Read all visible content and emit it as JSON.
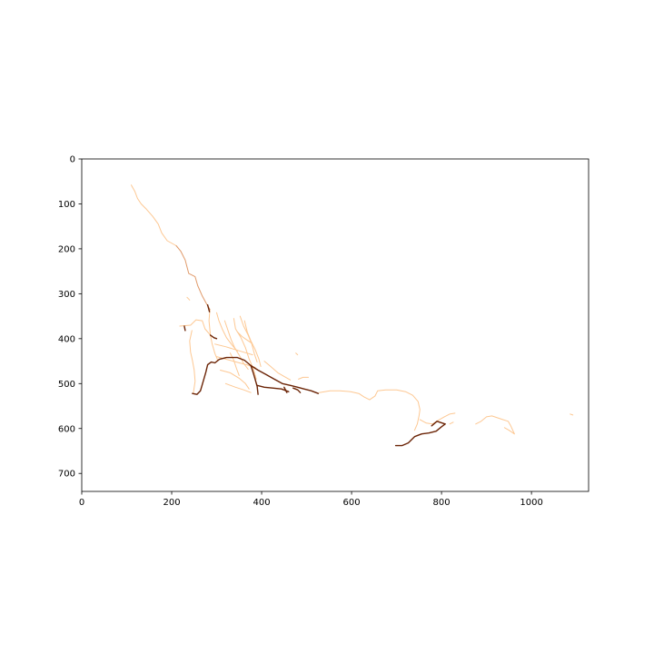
{
  "chart_data": {
    "type": "line",
    "title": "",
    "xlabel": "",
    "ylabel": "",
    "xlim": [
      0,
      1127
    ],
    "ylim": [
      740,
      0
    ],
    "y_inverted": true,
    "grid": false,
    "legend": "none",
    "x_ticks": [
      0,
      200,
      400,
      600,
      800,
      1000
    ],
    "x_tick_labels": [
      "0",
      "200",
      "400",
      "600",
      "800",
      "1000"
    ],
    "y_ticks": [
      0,
      100,
      200,
      300,
      400,
      500,
      600,
      700
    ],
    "y_tick_labels": [
      "0",
      "100",
      "200",
      "300",
      "400",
      "500",
      "600",
      "700"
    ],
    "colors": {
      "light": "#fdc893",
      "medium": "#e09a6a",
      "dark": "#6b2406"
    },
    "series": [
      {
        "level": "light",
        "points": [
          [
            110,
            58
          ],
          [
            118,
            72
          ],
          [
            124,
            88
          ],
          [
            132,
            100
          ],
          [
            144,
            112
          ],
          [
            158,
            128
          ],
          [
            170,
            145
          ],
          [
            178,
            165
          ],
          [
            190,
            182
          ],
          [
            210,
            193
          ]
        ]
      },
      {
        "level": "medium",
        "points": [
          [
            210,
            193
          ],
          [
            220,
            205
          ],
          [
            230,
            225
          ],
          [
            238,
            255
          ],
          [
            252,
            262
          ],
          [
            258,
            282
          ],
          [
            268,
            305
          ],
          [
            276,
            320
          ],
          [
            285,
            335
          ]
        ]
      },
      {
        "level": "light",
        "points": [
          [
            285,
            335
          ],
          [
            283,
            360
          ],
          [
            286,
            392
          ],
          [
            290,
            412
          ],
          [
            296,
            433
          ],
          [
            302,
            447
          ]
        ]
      },
      {
        "level": "light",
        "points": [
          [
            218,
            372
          ],
          [
            242,
            370
          ],
          [
            254,
            358
          ],
          [
            268,
            360
          ],
          [
            274,
            378
          ],
          [
            286,
            392
          ]
        ]
      },
      {
        "level": "light",
        "points": [
          [
            245,
            382
          ],
          [
            240,
            405
          ],
          [
            242,
            430
          ],
          [
            246,
            448
          ],
          [
            250,
            470
          ],
          [
            252,
            495
          ],
          [
            248,
            522
          ]
        ]
      },
      {
        "level": "light",
        "points": [
          [
            300,
            342
          ],
          [
            305,
            360
          ],
          [
            313,
            380
          ],
          [
            322,
            398
          ],
          [
            334,
            414
          ],
          [
            346,
            428
          ]
        ]
      },
      {
        "level": "light",
        "points": [
          [
            318,
            360
          ],
          [
            324,
            378
          ],
          [
            332,
            402
          ],
          [
            340,
            420
          ],
          [
            352,
            440
          ],
          [
            360,
            455
          ],
          [
            370,
            468
          ]
        ]
      },
      {
        "level": "light",
        "points": [
          [
            338,
            355
          ],
          [
            342,
            378
          ],
          [
            354,
            398
          ],
          [
            364,
            420
          ],
          [
            372,
            445
          ],
          [
            382,
            468
          ],
          [
            388,
            490
          ]
        ]
      },
      {
        "level": "light",
        "points": [
          [
            352,
            350
          ],
          [
            360,
            372
          ],
          [
            370,
            392
          ],
          [
            378,
            412
          ],
          [
            384,
            434
          ],
          [
            390,
            452
          ]
        ]
      },
      {
        "level": "light",
        "points": [
          [
            362,
            360
          ],
          [
            368,
            385
          ],
          [
            376,
            405
          ],
          [
            386,
            425
          ],
          [
            394,
            446
          ],
          [
            398,
            462
          ]
        ]
      },
      {
        "level": "light",
        "points": [
          [
            296,
            412
          ],
          [
            320,
            418
          ],
          [
            340,
            424
          ],
          [
            360,
            430
          ],
          [
            380,
            436
          ]
        ]
      },
      {
        "level": "light",
        "points": [
          [
            300,
            440
          ],
          [
            322,
            446
          ],
          [
            344,
            452
          ],
          [
            366,
            458
          ],
          [
            386,
            464
          ]
        ]
      },
      {
        "level": "light",
        "points": [
          [
            308,
            470
          ],
          [
            330,
            476
          ],
          [
            350,
            488
          ],
          [
            364,
            500
          ],
          [
            372,
            512
          ]
        ]
      },
      {
        "level": "light",
        "points": [
          [
            320,
            500
          ],
          [
            342,
            508
          ],
          [
            360,
            514
          ],
          [
            376,
            520
          ]
        ]
      },
      {
        "level": "light",
        "points": [
          [
            346,
            385
          ],
          [
            356,
            395
          ],
          [
            366,
            402
          ],
          [
            378,
            410
          ]
        ]
      },
      {
        "level": "light",
        "points": [
          [
            330,
            432
          ],
          [
            338,
            448
          ],
          [
            344,
            466
          ],
          [
            350,
            482
          ]
        ]
      },
      {
        "level": "light",
        "points": [
          [
            406,
            450
          ],
          [
            420,
            462
          ],
          [
            436,
            476
          ],
          [
            450,
            484
          ],
          [
            464,
            492
          ]
        ]
      },
      {
        "level": "light",
        "points": [
          [
            482,
            490
          ],
          [
            492,
            486
          ],
          [
            504,
            486
          ]
        ]
      },
      {
        "level": "light",
        "points": [
          [
            528,
            520
          ],
          [
            552,
            516
          ],
          [
            574,
            516
          ],
          [
            598,
            518
          ],
          [
            616,
            522
          ],
          [
            628,
            530
          ],
          [
            640,
            536
          ],
          [
            652,
            528
          ],
          [
            658,
            516
          ],
          [
            676,
            514
          ],
          [
            700,
            514
          ],
          [
            720,
            518
          ],
          [
            736,
            526
          ],
          [
            748,
            540
          ],
          [
            752,
            558
          ],
          [
            750,
            572
          ],
          [
            746,
            590
          ],
          [
            740,
            604
          ]
        ]
      },
      {
        "level": "light",
        "points": [
          [
            752,
            580
          ],
          [
            766,
            588
          ],
          [
            780,
            590
          ],
          [
            792,
            582
          ],
          [
            806,
            574
          ],
          [
            818,
            568
          ],
          [
            830,
            566
          ]
        ]
      },
      {
        "level": "light",
        "points": [
          [
            818,
            590
          ],
          [
            826,
            586
          ]
        ]
      },
      {
        "level": "light",
        "points": [
          [
            876,
            590
          ],
          [
            888,
            584
          ],
          [
            900,
            574
          ],
          [
            912,
            572
          ],
          [
            924,
            576
          ],
          [
            936,
            580
          ],
          [
            948,
            584
          ],
          [
            954,
            594
          ],
          [
            962,
            612
          ]
        ]
      },
      {
        "level": "light",
        "points": [
          [
            940,
            598
          ],
          [
            950,
            604
          ],
          [
            962,
            612
          ]
        ]
      },
      {
        "level": "light",
        "points": [
          [
            1086,
            568
          ],
          [
            1092,
            570
          ]
        ]
      },
      {
        "level": "light",
        "points": [
          [
            476,
            432
          ],
          [
            480,
            436
          ]
        ]
      },
      {
        "level": "light",
        "points": [
          [
            234,
            308
          ],
          [
            240,
            314
          ]
        ]
      },
      {
        "level": "dark",
        "points": [
          [
            280,
            325
          ],
          [
            284,
            340
          ]
        ]
      },
      {
        "level": "dark",
        "points": [
          [
            286,
            392
          ],
          [
            294,
            398
          ],
          [
            300,
            400
          ]
        ]
      },
      {
        "level": "dark",
        "points": [
          [
            246,
            522
          ],
          [
            256,
            524
          ],
          [
            264,
            516
          ],
          [
            268,
            502
          ],
          [
            272,
            488
          ],
          [
            276,
            474
          ],
          [
            280,
            458
          ],
          [
            288,
            452
          ],
          [
            296,
            454
          ],
          [
            306,
            446
          ],
          [
            322,
            442
          ],
          [
            346,
            442
          ],
          [
            362,
            448
          ],
          [
            376,
            460
          ]
        ]
      },
      {
        "level": "dark",
        "points": [
          [
            376,
            460
          ],
          [
            382,
            478
          ],
          [
            386,
            492
          ],
          [
            390,
            506
          ],
          [
            392,
            524
          ]
        ]
      },
      {
        "level": "dark",
        "points": [
          [
            376,
            460
          ],
          [
            392,
            470
          ],
          [
            410,
            480
          ],
          [
            428,
            490
          ],
          [
            446,
            500
          ],
          [
            464,
            504
          ],
          [
            480,
            508
          ],
          [
            494,
            512
          ],
          [
            510,
            516
          ],
          [
            526,
            522
          ]
        ]
      },
      {
        "level": "dark",
        "points": [
          [
            390,
            504
          ],
          [
            406,
            508
          ],
          [
            424,
            510
          ],
          [
            444,
            512
          ],
          [
            460,
            518
          ]
        ]
      },
      {
        "level": "dark",
        "points": [
          [
            450,
            508
          ],
          [
            456,
            520
          ]
        ]
      },
      {
        "level": "dark",
        "points": [
          [
            470,
            510
          ],
          [
            480,
            514
          ],
          [
            486,
            520
          ]
        ]
      },
      {
        "level": "dark",
        "points": [
          [
            698,
            638
          ],
          [
            712,
            638
          ],
          [
            726,
            632
          ],
          [
            740,
            618
          ],
          [
            756,
            612
          ],
          [
            772,
            610
          ],
          [
            788,
            606
          ],
          [
            800,
            596
          ],
          [
            808,
            590
          ]
        ]
      },
      {
        "level": "dark",
        "points": [
          [
            778,
            594
          ],
          [
            790,
            584
          ],
          [
            808,
            590
          ]
        ]
      },
      {
        "level": "dark",
        "points": [
          [
            228,
            372
          ],
          [
            230,
            382
          ]
        ]
      }
    ]
  }
}
